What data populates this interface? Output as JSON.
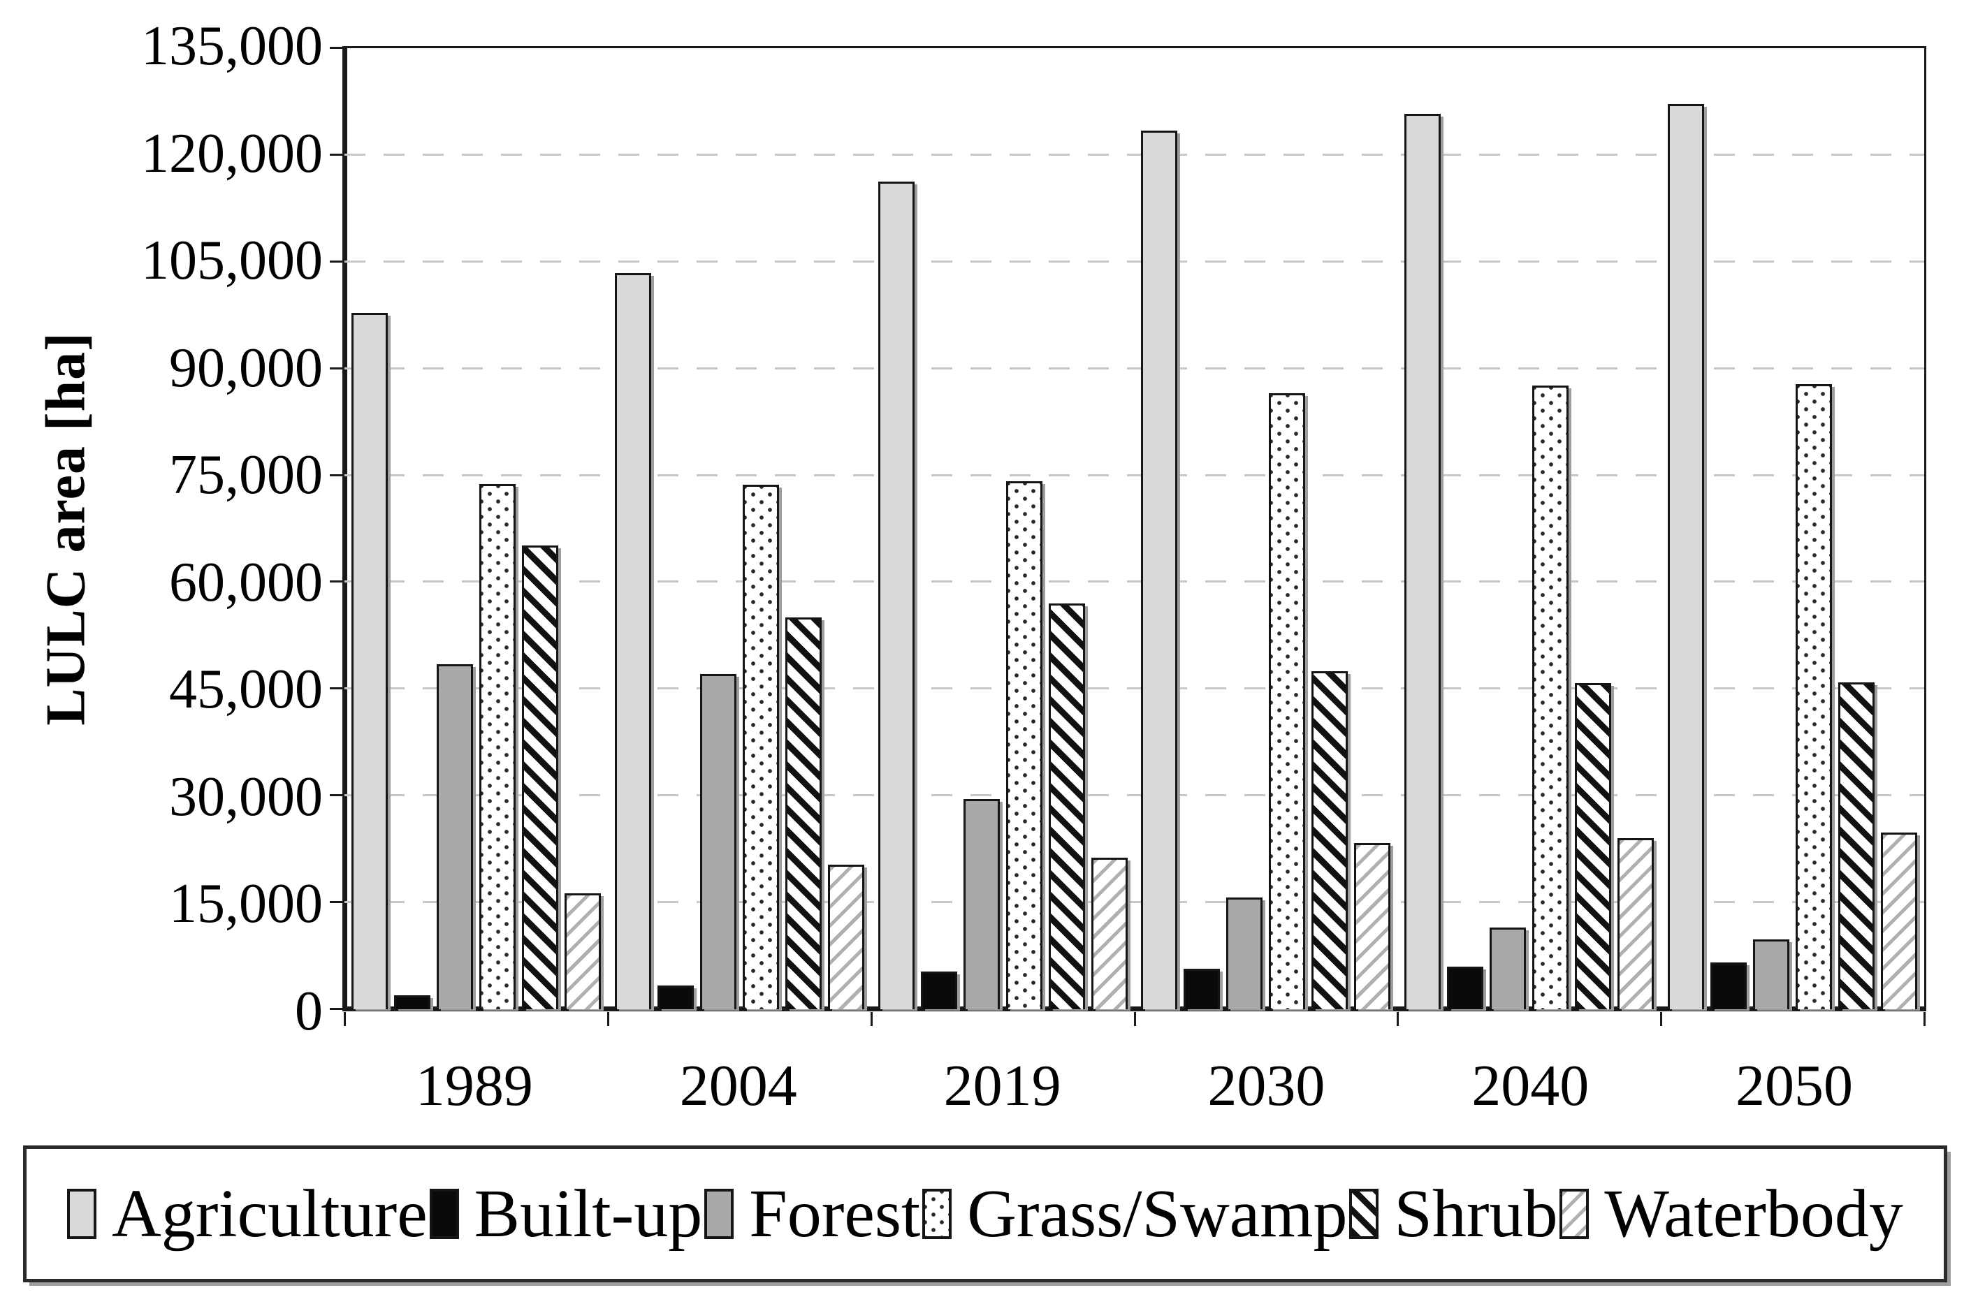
{
  "figure": {
    "background": "#ffffff"
  },
  "chart_data": {
    "type": "bar",
    "title": "",
    "xlabel": "",
    "ylabel": "LULC area [ha]",
    "ylim": [
      0,
      135000
    ],
    "ytick_step": 15000,
    "grid": "horizontal-dashed",
    "legend_position": "bottom",
    "categories": [
      "1989",
      "2004",
      "2019",
      "2030",
      "2040",
      "2050"
    ],
    "y_ticks": [
      {
        "value": 135000,
        "label": "135,000"
      },
      {
        "value": 120000,
        "label": "120,000"
      },
      {
        "value": 105000,
        "label": "105,000"
      },
      {
        "value": 90000,
        "label": "90,000"
      },
      {
        "value": 75000,
        "label": "75,000"
      },
      {
        "value": 60000,
        "label": "60,000"
      },
      {
        "value": 45000,
        "label": "45,000"
      },
      {
        "value": 30000,
        "label": "30,000"
      },
      {
        "value": 15000,
        "label": "15,000"
      },
      {
        "value": 0,
        "label": "0"
      }
    ],
    "series": [
      {
        "name": "Agriculture",
        "pattern": "solid-light-gray",
        "color": "#d9d9d9",
        "values": [
          97500,
          103100,
          116000,
          123100,
          125500,
          126900
        ]
      },
      {
        "name": "Built-up",
        "pattern": "solid-black",
        "color": "#0a0a0a",
        "values": [
          1700,
          3000,
          5000,
          5400,
          5700,
          6300
        ]
      },
      {
        "name": "Forest",
        "pattern": "solid-gray",
        "color": "#a8a8a8",
        "values": [
          48200,
          46800,
          29200,
          15400,
          11200,
          9500
        ]
      },
      {
        "name": "Grass/Swamp",
        "pattern": "dots",
        "color": "#ffffff",
        "values": [
          73500,
          73400,
          73900,
          86200,
          87300,
          87500
        ]
      },
      {
        "name": "Shrub",
        "pattern": "diagonal-heavy-backslash",
        "color": "#111111",
        "values": [
          64900,
          54700,
          56700,
          47200,
          45500,
          45600
        ]
      },
      {
        "name": "Waterbody",
        "pattern": "diagonal-light-slash",
        "color": "#b0b0b0",
        "values": [
          16000,
          20000,
          21000,
          23100,
          23700,
          24500
        ]
      }
    ]
  },
  "colors": {
    "axis": "#1a1a1a",
    "grid": "#c8c8c8",
    "text": "#000000"
  }
}
